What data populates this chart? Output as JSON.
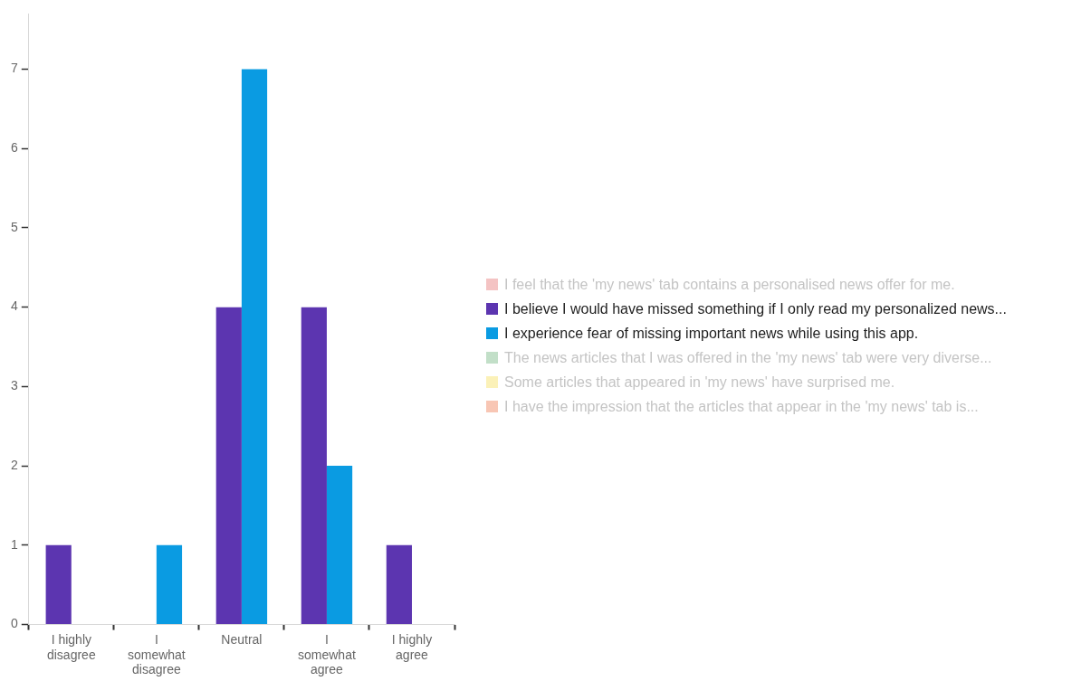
{
  "chart_data": {
    "type": "bar",
    "categories": [
      "I highly disagree",
      "I somewhat disagree",
      "Neutral",
      "I somewhat agree",
      "I highly agree"
    ],
    "series": [
      {
        "name": "I feel that the 'my news' tab contains a personalised news offer for me.",
        "color": "#f4c3c3",
        "values": [
          null,
          null,
          null,
          null,
          null
        ]
      },
      {
        "name": "I believe I would have missed something if I only read my personalized news...",
        "color": "#5c35b0",
        "values": [
          1,
          0,
          4,
          4,
          1
        ]
      },
      {
        "name": "I experience fear of missing important news while using this app.",
        "color": "#0a9be2",
        "values": [
          0,
          1,
          7,
          2,
          0
        ]
      },
      {
        "name": "The news articles that I was offered in the 'my news' tab were very diverse...",
        "color": "#c2dfc8",
        "values": [
          null,
          null,
          null,
          null,
          null
        ]
      },
      {
        "name": "Some articles that appeared in 'my news' have surprised me.",
        "color": "#fbf1b8",
        "values": [
          null,
          null,
          null,
          null,
          null
        ]
      },
      {
        "name": "I have the impression that the articles that appear in the 'my news' tab is...",
        "color": "#f8c6b4",
        "values": [
          null,
          null,
          null,
          null,
          null
        ]
      }
    ],
    "ylim": [
      0,
      7.7
    ],
    "yticks": [
      0,
      1,
      2,
      3,
      4,
      5,
      6,
      7
    ],
    "grid": false,
    "legend": "right"
  }
}
